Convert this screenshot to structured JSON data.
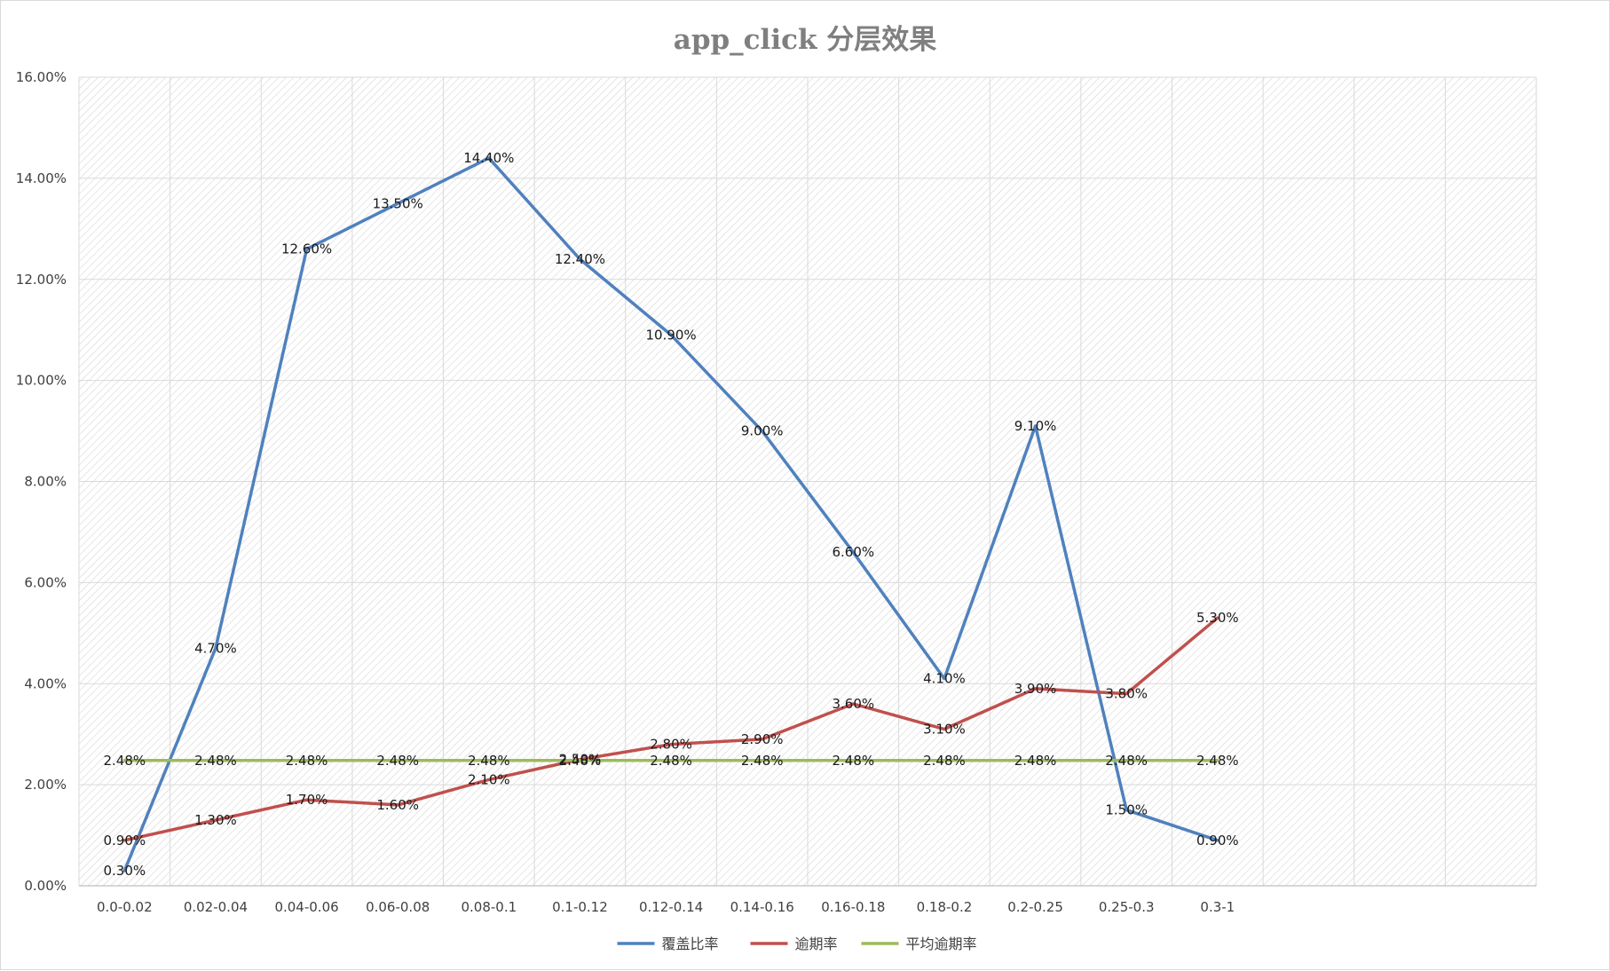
{
  "chart_data": {
    "type": "line",
    "title": "app_click 分层效果",
    "xlabel": "",
    "ylabel": "",
    "categories": [
      "0.0-0.02",
      "0.02-0.04",
      "0.04-0.06",
      "0.06-0.08",
      "0.08-0.1",
      "0.1-0.12",
      "0.12-0.14",
      "0.14-0.16",
      "0.16-0.18",
      "0.18-0.2",
      "0.2-0.25",
      "0.25-0.3",
      "0.3-1"
    ],
    "ylim": [
      0,
      16
    ],
    "y_ticks": [
      "0.00%",
      "2.00%",
      "4.00%",
      "6.00%",
      "8.00%",
      "10.00%",
      "12.00%",
      "14.00%",
      "16.00%"
    ],
    "grid": true,
    "legend_position": "bottom",
    "series": [
      {
        "name": "覆盖比率",
        "color": "#4f81bd",
        "values": [
          0.3,
          4.7,
          12.6,
          13.5,
          14.4,
          12.4,
          10.9,
          9.0,
          6.6,
          4.1,
          9.1,
          1.5,
          0.9
        ],
        "labels": [
          "0.30%",
          "4.70%",
          "12.60%",
          "13.50%",
          "14.40%",
          "12.40%",
          "10.90%",
          "9.00%",
          "6.60%",
          "4.10%",
          "9.10%",
          "1.50%",
          "0.90%"
        ]
      },
      {
        "name": "逾期率",
        "color": "#c0504d",
        "values": [
          0.9,
          1.3,
          1.7,
          1.6,
          2.1,
          2.5,
          2.8,
          2.9,
          3.6,
          3.1,
          3.9,
          3.8,
          5.3
        ],
        "labels": [
          "0.90%",
          "1.30%",
          "1.70%",
          "1.60%",
          "2.10%",
          "2.50%",
          "2.80%",
          "2.90%",
          "3.60%",
          "3.10%",
          "3.90%",
          "3.80%",
          "5.30%"
        ]
      },
      {
        "name": "平均逾期率",
        "color": "#9bbb59",
        "values": [
          2.48,
          2.48,
          2.48,
          2.48,
          2.48,
          2.48,
          2.48,
          2.48,
          2.48,
          2.48,
          2.48,
          2.48,
          2.48
        ],
        "labels": [
          "2.48%",
          "2.48%",
          "2.48%",
          "2.48%",
          "2.48%",
          "2.48%",
          "2.48%",
          "2.48%",
          "2.48%",
          "2.48%",
          "2.48%",
          "2.48%",
          "2.48%"
        ]
      }
    ]
  }
}
